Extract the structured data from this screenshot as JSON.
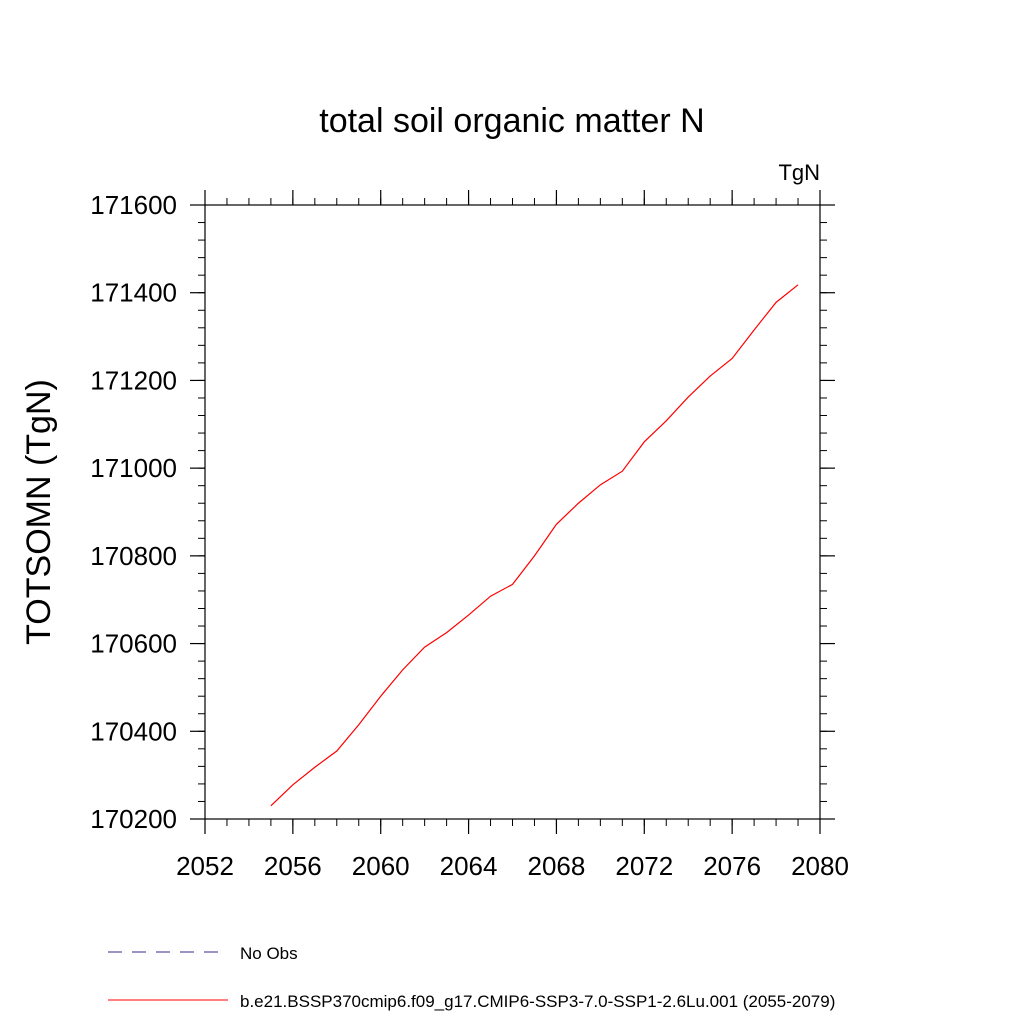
{
  "chart_data": {
    "type": "line",
    "title": "total soil organic matter N",
    "units_label": "TgN",
    "ylabel": "TOTSOMN  (TgN)",
    "xlabel": "",
    "xlim": [
      2052,
      2080
    ],
    "ylim": [
      170200,
      171600
    ],
    "x_ticks": [
      2052,
      2056,
      2060,
      2064,
      2068,
      2072,
      2076,
      2080
    ],
    "y_ticks": [
      170200,
      170400,
      170600,
      170800,
      171000,
      171200,
      171400,
      171600
    ],
    "x_minor_step": 1,
    "y_minor_step": 40,
    "grid": false,
    "legend_position": "bottom",
    "series": [
      {
        "name": "No Obs",
        "color": "#3a2a8c",
        "dash": "dashed",
        "x": [],
        "y": []
      },
      {
        "name": "b.e21.BSSP370cmip6.f09_g17.CMIP6-SSP3-7.0-SSP1-2.6Lu.001 (2055-2079)",
        "color": "#ff0000",
        "dash": "solid",
        "x": [
          2055,
          2056,
          2057,
          2058,
          2059,
          2060,
          2061,
          2062,
          2063,
          2064,
          2065,
          2066,
          2067,
          2068,
          2069,
          2070,
          2071,
          2072,
          2073,
          2074,
          2075,
          2076,
          2077,
          2078,
          2079
        ],
        "y": [
          170230,
          170278,
          170318,
          170355,
          170415,
          170480,
          170540,
          170592,
          170625,
          170665,
          170708,
          170735,
          170800,
          170872,
          170920,
          170962,
          170993,
          171060,
          171108,
          171162,
          171210,
          171250,
          171315,
          171378,
          171418
        ]
      }
    ]
  }
}
